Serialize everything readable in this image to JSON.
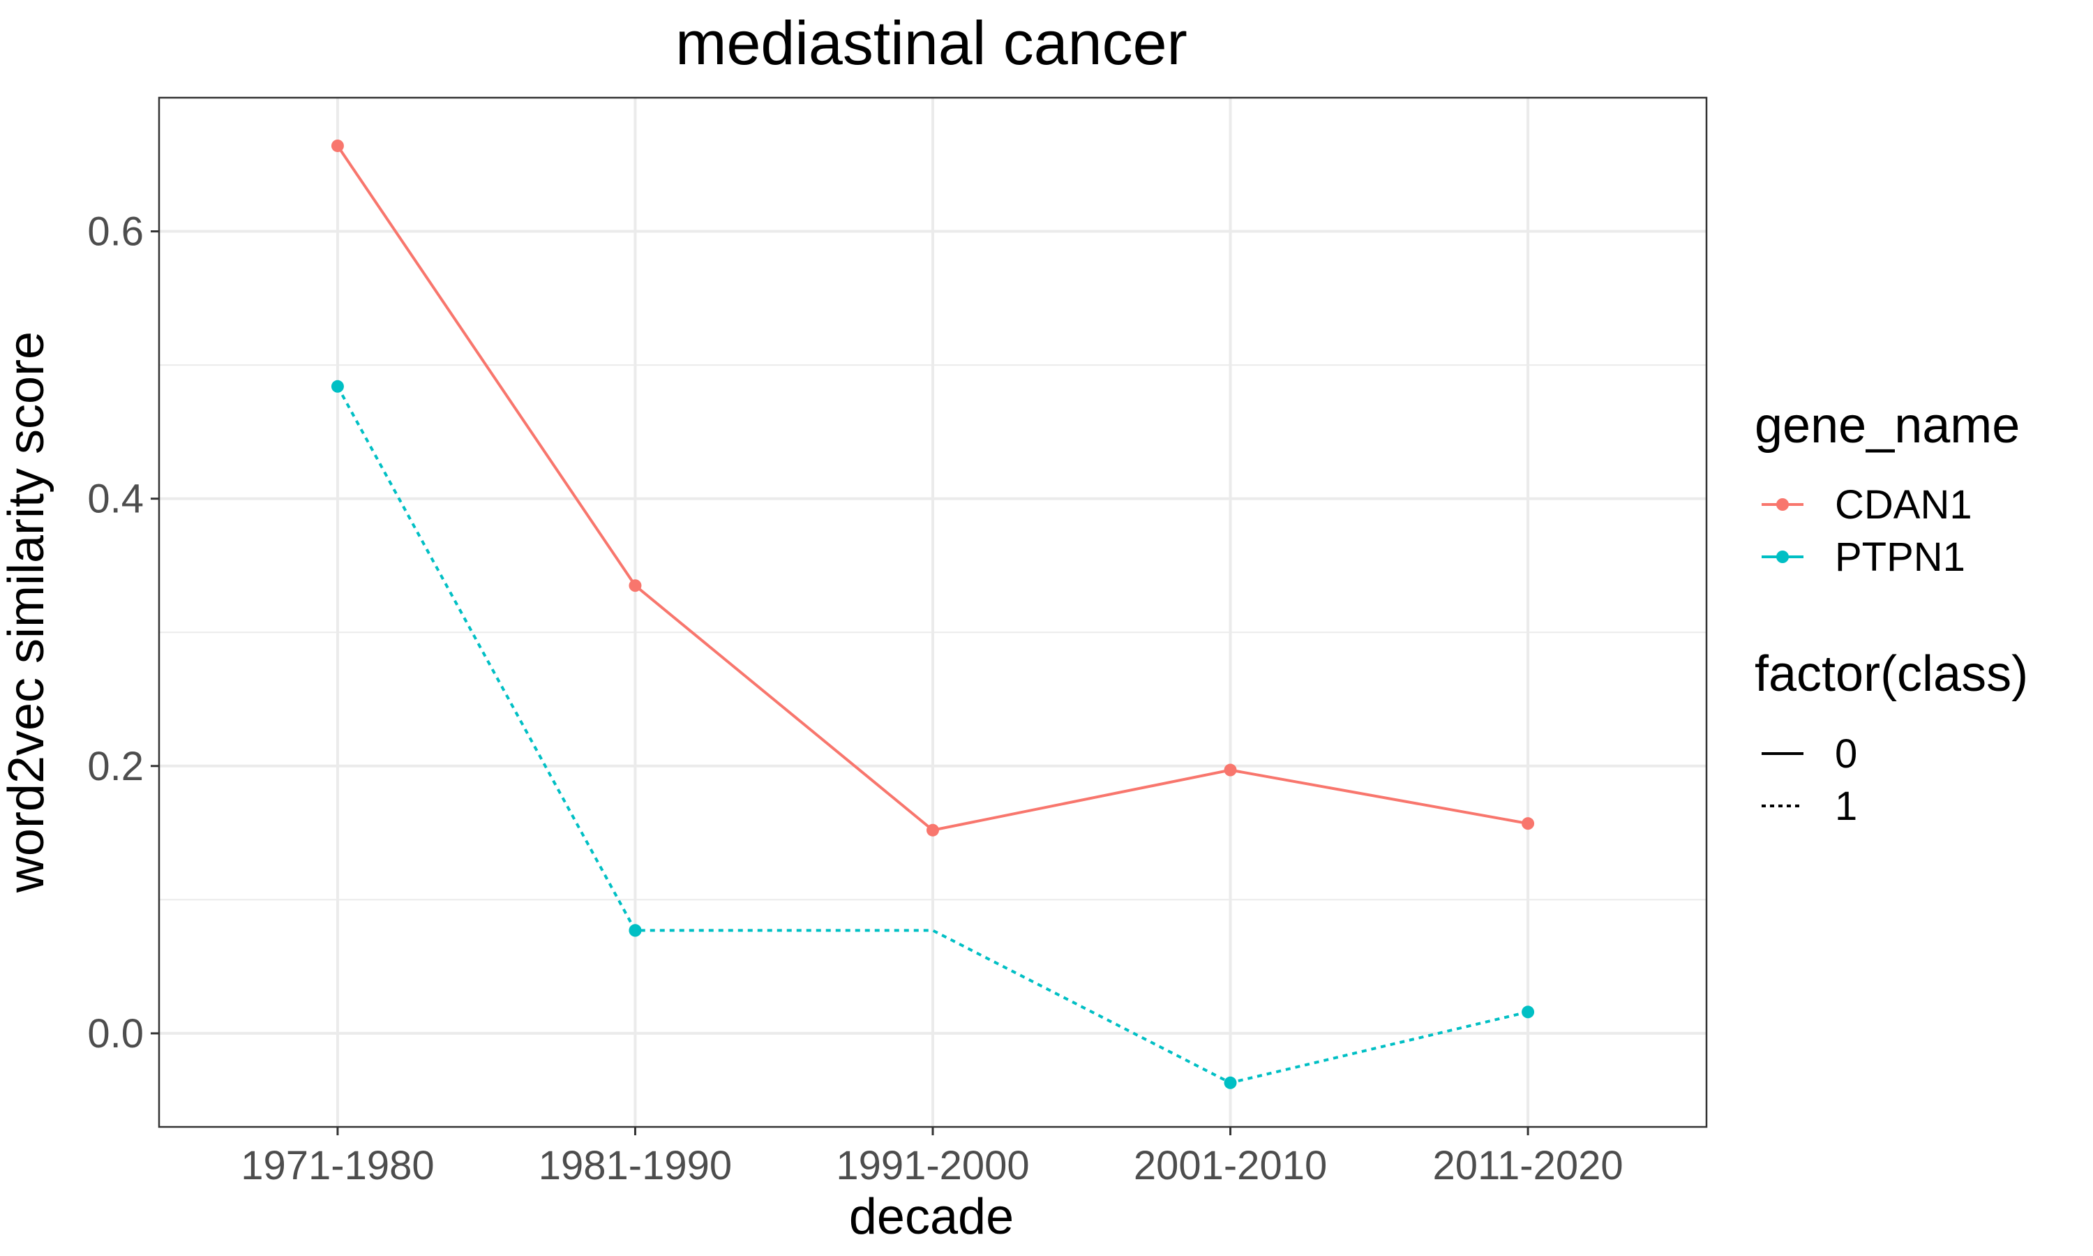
{
  "chart_data": {
    "type": "line",
    "title": "mediastinal cancer",
    "xlabel": "decade",
    "ylabel": "word2vec similarity score",
    "categories": [
      "1971-1980",
      "1981-1990",
      "1991-2000",
      "2001-2010",
      "2011-2020"
    ],
    "ylim": [
      -0.07,
      0.7
    ],
    "yticks": [
      0.0,
      0.2,
      0.4,
      0.6
    ],
    "ytick_labels": [
      "0.0",
      "0.2",
      "0.4",
      "0.6"
    ],
    "grid": true,
    "legend_placement": "right",
    "series": [
      {
        "name": "CDAN1",
        "class": "0",
        "color": "#F8766D",
        "linestyle": "solid",
        "values": [
          0.664,
          0.335,
          0.152,
          0.197,
          0.157
        ]
      },
      {
        "name": "PTPN1",
        "class": "1",
        "color": "#00BFC4",
        "linestyle": "dotted",
        "values": [
          0.484,
          0.077,
          0.077,
          -0.037,
          0.016
        ]
      }
    ],
    "legends": [
      {
        "title": "gene_name",
        "entries": [
          {
            "label": "CDAN1",
            "color": "#F8766D"
          },
          {
            "label": "PTPN1",
            "color": "#00BFC4"
          }
        ]
      },
      {
        "title": "factor(class)",
        "entries": [
          {
            "label": "0",
            "linestyle": "solid"
          },
          {
            "label": "1",
            "linestyle": "dotted"
          }
        ]
      }
    ]
  }
}
